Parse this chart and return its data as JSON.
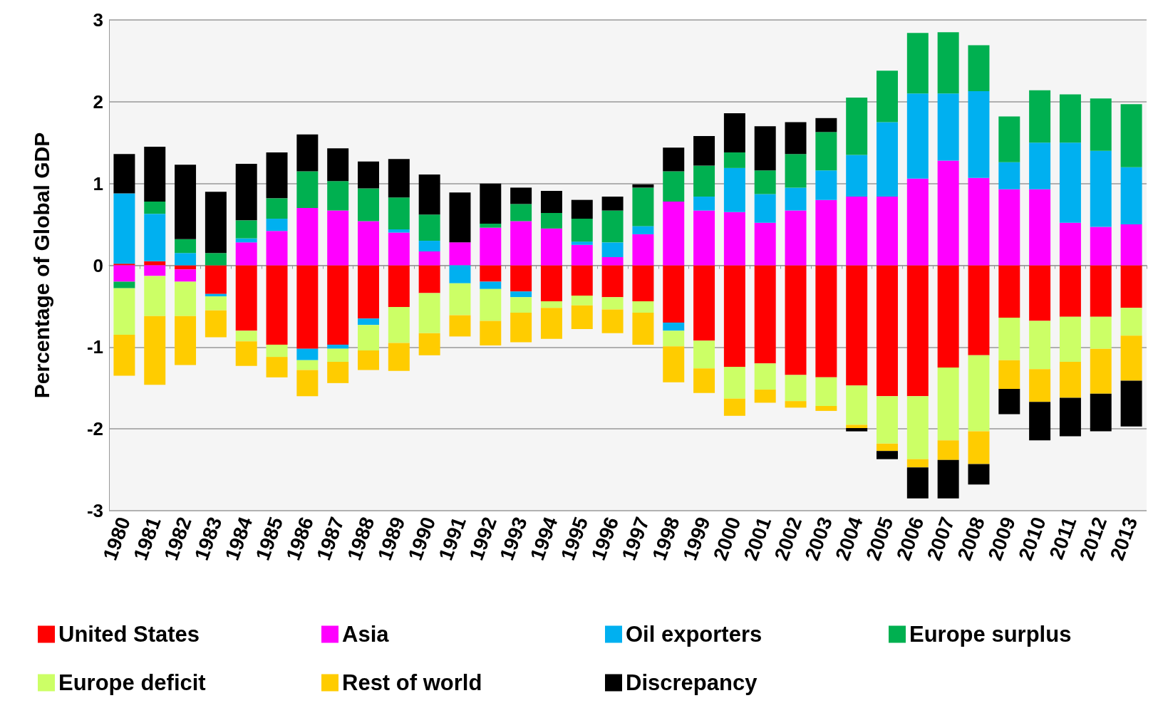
{
  "chart_data": {
    "type": "bar",
    "stacked": true,
    "ylabel": "Percentage of Global GDP",
    "categories": [
      "1980",
      "1981",
      "1982",
      "1983",
      "1984",
      "1985",
      "1986",
      "1987",
      "1988",
      "1989",
      "1990",
      "1991",
      "1992",
      "1993",
      "1994",
      "1995",
      "1996",
      "1997",
      "1998",
      "1999",
      "2000",
      "2001",
      "2002",
      "2003",
      "2004",
      "2005",
      "2006",
      "2007",
      "2008",
      "2009",
      "2010",
      "2011",
      "2012",
      "2013"
    ],
    "ylim": [
      -3,
      3
    ],
    "yticks": [
      -3,
      -2,
      -1,
      0,
      1,
      2,
      3
    ],
    "grid": "y",
    "legend": "bottom",
    "series": [
      {
        "name": "United States",
        "color": "#ff0000",
        "values": [
          0.02,
          0.05,
          -0.05,
          -0.35,
          -0.8,
          -0.97,
          -1.02,
          -0.97,
          -0.65,
          -0.51,
          -0.34,
          0,
          -0.2,
          -0.32,
          -0.44,
          -0.37,
          -0.39,
          -0.44,
          -0.7,
          -0.92,
          -1.24,
          -1.2,
          -1.34,
          -1.37,
          -1.47,
          -1.6,
          -1.6,
          -1.25,
          -1.1,
          -0.64,
          -0.68,
          -0.63,
          -0.63,
          -0.52
        ]
      },
      {
        "name": "Asia",
        "color": "#ff00ff",
        "values": [
          -0.2,
          -0.13,
          -0.15,
          0,
          0.28,
          0.42,
          0.7,
          0.67,
          0.54,
          0.4,
          0.17,
          0.28,
          0.46,
          0.54,
          0.45,
          0.25,
          0.1,
          0.38,
          0.78,
          0.67,
          0.65,
          0.52,
          0.67,
          0.8,
          0.84,
          0.84,
          1.06,
          1.28,
          1.07,
          0.93,
          0.93,
          0.52,
          0.47,
          0.5
        ]
      },
      {
        "name": "Oil exporters",
        "color": "#00b0f0",
        "values": [
          0.86,
          0.58,
          0.15,
          -0.03,
          0.05,
          0.15,
          -0.14,
          -0.05,
          -0.08,
          0.04,
          0.13,
          -0.22,
          -0.09,
          -0.07,
          0,
          0.04,
          0.18,
          0.1,
          -0.1,
          0.17,
          0.54,
          0.35,
          0.28,
          0.36,
          0.51,
          0.91,
          1.04,
          0.82,
          1.06,
          0.33,
          0.57,
          0.98,
          0.93,
          0.7
        ]
      },
      {
        "name": "Europe surplus",
        "color": "#00b050",
        "values": [
          -0.08,
          0.15,
          0.17,
          0.15,
          0.22,
          0.25,
          0.45,
          0.36,
          0.4,
          0.39,
          0.32,
          0,
          0.05,
          0.21,
          0.19,
          0.28,
          0.39,
          0.47,
          0.37,
          0.38,
          0.19,
          0.29,
          0.41,
          0.47,
          0.7,
          0.63,
          0.74,
          0.75,
          0.56,
          0.56,
          0.64,
          0.59,
          0.64,
          0.77
        ]
      },
      {
        "name": "Europe deficit",
        "color": "#ccff66",
        "values": [
          -0.57,
          -0.49,
          -0.42,
          -0.17,
          -0.13,
          -0.15,
          -0.12,
          -0.16,
          -0.31,
          -0.44,
          -0.49,
          -0.39,
          -0.39,
          -0.19,
          -0.08,
          -0.12,
          -0.15,
          -0.14,
          -0.19,
          -0.34,
          -0.39,
          -0.32,
          -0.32,
          -0.35,
          -0.48,
          -0.58,
          -0.77,
          -0.89,
          -0.93,
          -0.52,
          -0.59,
          -0.55,
          -0.39,
          -0.34
        ]
      },
      {
        "name": "Rest of world",
        "color": "#ffcc00",
        "values": [
          -0.5,
          -0.84,
          -0.6,
          -0.33,
          -0.3,
          -0.25,
          -0.32,
          -0.26,
          -0.24,
          -0.34,
          -0.27,
          -0.26,
          -0.3,
          -0.36,
          -0.38,
          -0.29,
          -0.29,
          -0.39,
          -0.44,
          -0.3,
          -0.21,
          -0.16,
          -0.08,
          -0.06,
          -0.04,
          -0.09,
          -0.1,
          -0.24,
          -0.4,
          -0.35,
          -0.4,
          -0.44,
          -0.55,
          -0.55
        ]
      },
      {
        "name": "Discrepancy",
        "color": "#000000",
        "values": [
          0.48,
          0.67,
          0.91,
          0.75,
          0.69,
          0.56,
          0.45,
          0.4,
          0.33,
          0.47,
          0.49,
          0.61,
          0.49,
          0.2,
          0.27,
          0.23,
          0.17,
          0.04,
          0.29,
          0.36,
          0.48,
          0.54,
          0.39,
          0.17,
          -0.04,
          -0.1,
          -0.38,
          -0.47,
          -0.25,
          -0.31,
          -0.47,
          -0.47,
          -0.46,
          -0.56
        ]
      }
    ]
  }
}
